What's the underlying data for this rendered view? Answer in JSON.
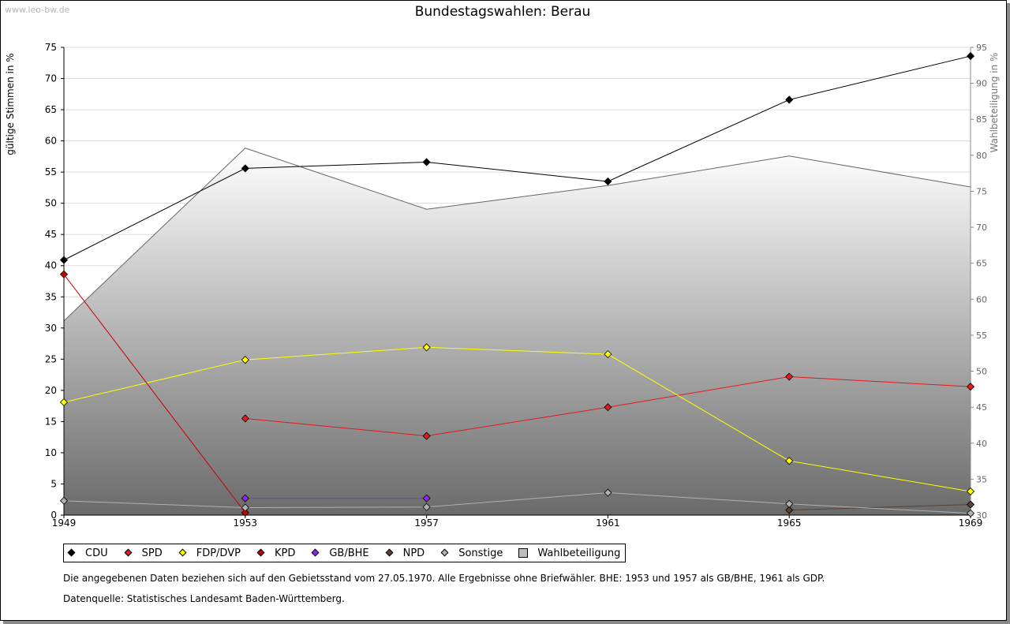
{
  "watermark": "www.leo-bw.de",
  "chart_data": {
    "type": "line",
    "title": "Bundestagswahlen: Berau",
    "ylabel": "gültige Stimmen in %",
    "y2label": "Wahlbeteiligung in %",
    "categories": [
      "1949",
      "1953",
      "1957",
      "1961",
      "1965",
      "1969"
    ],
    "ylim": [
      0,
      75
    ],
    "yticks": [
      0,
      5,
      10,
      15,
      20,
      25,
      30,
      35,
      40,
      45,
      50,
      55,
      60,
      65,
      70,
      75
    ],
    "y2lim": [
      30,
      95
    ],
    "y2ticks": [
      30,
      35,
      40,
      45,
      50,
      55,
      60,
      65,
      70,
      75,
      80,
      85,
      90,
      95
    ],
    "area": {
      "name": "Wahlbeteiligung",
      "values": [
        57.0,
        81.0,
        72.5,
        75.8,
        79.9,
        75.6
      ]
    },
    "series": [
      {
        "name": "CDU",
        "color": "#000000",
        "values": [
          40.9,
          55.6,
          56.6,
          53.5,
          66.6,
          73.6
        ]
      },
      {
        "name": "SPD",
        "color": "#e41a1c",
        "values": [
          null,
          15.5,
          12.7,
          17.3,
          22.2,
          20.6
        ]
      },
      {
        "name": "FDP/DVP",
        "color": "#ffff00",
        "values": [
          18.1,
          24.9,
          26.9,
          25.8,
          8.7,
          3.8
        ]
      },
      {
        "name": "KPD",
        "color": "#cc0000",
        "values": [
          38.6,
          0.4,
          null,
          null,
          null,
          null
        ]
      },
      {
        "name": "GB/BHE",
        "color": "#8a2be2",
        "values": [
          null,
          2.7,
          2.7,
          null,
          null,
          null
        ]
      },
      {
        "name": "NPD",
        "color": "#5c4033",
        "values": [
          null,
          null,
          null,
          null,
          0.8,
          1.7
        ]
      },
      {
        "name": "Sonstige",
        "color": "#b0b0b0",
        "values": [
          2.3,
          1.2,
          1.3,
          3.6,
          1.8,
          0.3
        ]
      }
    ],
    "legend": [
      "CDU",
      "SPD",
      "FDP/DVP",
      "KPD",
      "GB/BHE",
      "NPD",
      "Sonstige",
      "Wahlbeteiligung"
    ]
  },
  "footnote": "Die angegebenen Daten beziehen sich auf den Gebietsstand vom 27.05.1970. Alle Ergebnisse ohne Briefwähler. BHE: 1953 und 1957 als GB/BHE, 1961 als GDP.",
  "source": "Datenquelle: Statistisches Landesamt Baden-Württemberg."
}
